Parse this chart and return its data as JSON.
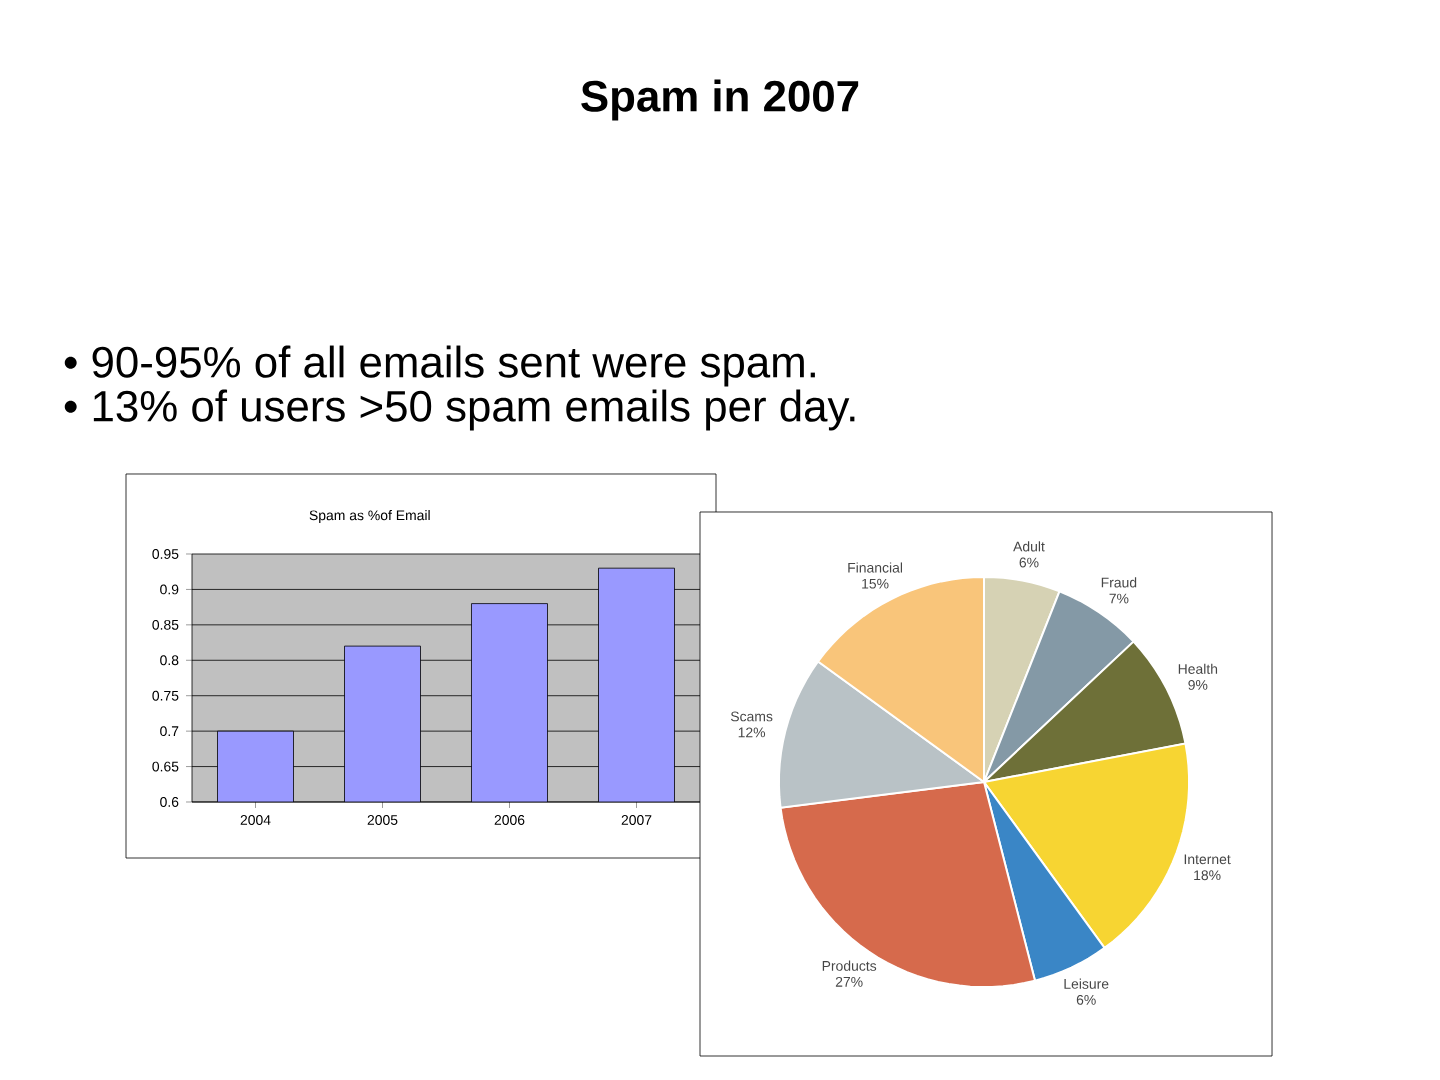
{
  "chart_data": [
    {
      "type": "other",
      "title": "Spam in 2007",
      "annotations": [
        "• 90-95% of all emails sent were spam.",
        "• 13% of users >50 spam emails per day."
      ]
    },
    {
      "type": "bar",
      "title": "Spam as %of Email",
      "categories": [
        "2004",
        "2005",
        "2006",
        "2007"
      ],
      "values": [
        0.7,
        0.82,
        0.88,
        0.93
      ],
      "color": "#9999ff",
      "ylim": [
        0.6,
        0.95
      ],
      "yticks": [
        0.6,
        0.65,
        0.7,
        0.75,
        0.8,
        0.85,
        0.9,
        0.95
      ],
      "grid": "y"
    },
    {
      "type": "pie",
      "categories": [
        "Adult",
        "Fraud",
        "Health",
        "Internet",
        "Leisure",
        "Products",
        "Scams",
        "Financial"
      ],
      "values": [
        6,
        7,
        9,
        18,
        6,
        27,
        12,
        15
      ],
      "value_labels": [
        "6%",
        "7%",
        "9%",
        "18%",
        "6%",
        "27%",
        "12%",
        "15%"
      ],
      "colors": [
        "#d6d2b4",
        "#8499a6",
        "#6e7038",
        "#f7d532",
        "#3a86c6",
        "#d66a4c",
        "#b9c2c6",
        "#f9c57a"
      ]
    }
  ]
}
